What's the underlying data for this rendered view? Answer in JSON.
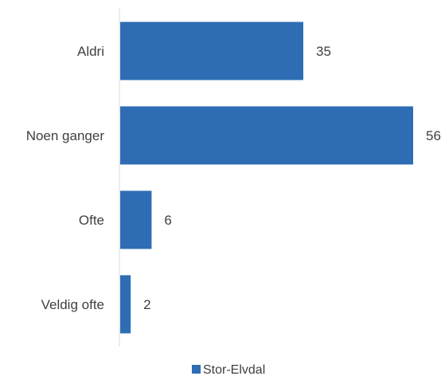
{
  "chart_data": {
    "type": "bar",
    "orientation": "horizontal",
    "categories": [
      "Aldri",
      "Noen ganger",
      "Ofte",
      "Veldig ofte"
    ],
    "series": [
      {
        "name": "Stor-Elvdal",
        "values": [
          35,
          56,
          6,
          2
        ],
        "color": "#2E6DB4"
      }
    ],
    "xlim": [
      0,
      56
    ],
    "data_labels": true,
    "grid": false,
    "legend_position": "bottom"
  }
}
